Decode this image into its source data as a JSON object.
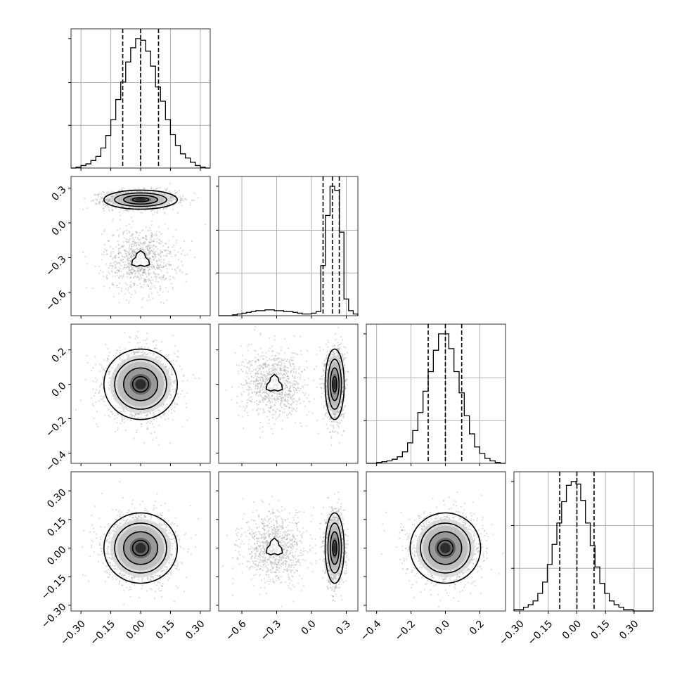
{
  "chart_data": {
    "type": "corner",
    "title": "",
    "grid": true,
    "parameters": [
      {
        "label": "",
        "range": [
          -0.35,
          0.35
        ],
        "ticks": [
          -0.3,
          -0.15,
          0.0,
          0.15,
          0.3
        ],
        "tick_labels": [
          "−0.30",
          "−0.15",
          "0.00",
          "0.15",
          "0.30"
        ],
        "quantiles": [
          -0.09,
          0.0,
          0.09
        ]
      },
      {
        "label": "",
        "range": [
          -0.8,
          0.4
        ],
        "ticks": [
          -0.6,
          -0.3,
          0.0,
          0.3
        ],
        "tick_labels": [
          "−0.6",
          "−0.3",
          "0.0",
          "0.3"
        ],
        "quantiles": [
          0.1,
          0.18,
          0.24
        ]
      },
      {
        "label": "",
        "range": [
          -0.46,
          0.35
        ],
        "ticks": [
          -0.4,
          -0.2,
          0.0,
          0.2
        ],
        "tick_labels": [
          "−0.4",
          "−0.2",
          "0.0",
          "0.2"
        ],
        "quantiles": [
          -0.1,
          0.0,
          0.095
        ]
      },
      {
        "label": "",
        "range": [
          -0.33,
          0.4
        ],
        "ticks": [
          -0.3,
          -0.15,
          0.0,
          0.15,
          0.3
        ],
        "tick_labels": [
          "−0.30",
          "−0.15",
          "0.00",
          "0.15",
          "0.30"
        ],
        "quantiles": [
          -0.09,
          0.0,
          0.09
        ]
      }
    ],
    "histograms": [
      {
        "param": 0,
        "bin_edges": [
          -0.35,
          -0.325,
          -0.3,
          -0.275,
          -0.25,
          -0.225,
          -0.2,
          -0.175,
          -0.15,
          -0.125,
          -0.1,
          -0.075,
          -0.05,
          -0.025,
          0,
          0.025,
          0.05,
          0.075,
          0.1,
          0.125,
          0.15,
          0.175,
          0.2,
          0.225,
          0.25,
          0.275,
          0.3,
          0.325,
          0.35
        ],
        "counts": [
          0,
          1,
          3,
          5,
          9,
          14,
          24,
          39,
          58,
          82,
          103,
          127,
          144,
          155,
          153,
          140,
          122,
          97,
          80,
          58,
          40,
          27,
          17,
          12,
          7,
          3,
          1,
          0
        ]
      },
      {
        "param": 1,
        "bin_edges": [
          -0.8,
          -0.76,
          -0.72,
          -0.68,
          -0.64,
          -0.6,
          -0.56,
          -0.52,
          -0.48,
          -0.44,
          -0.4,
          -0.36,
          -0.32,
          -0.28,
          -0.24,
          -0.2,
          -0.16,
          -0.12,
          -0.08,
          -0.04,
          0,
          0.04,
          0.08,
          0.12,
          0.16,
          0.2,
          0.24,
          0.28,
          0.32,
          0.36,
          0.4
        ],
        "counts": [
          0,
          0,
          0,
          1,
          2,
          3,
          4,
          5,
          6,
          6,
          7,
          7,
          6,
          6,
          5,
          5,
          4,
          3,
          2,
          2,
          3,
          5,
          60,
          120,
          155,
          150,
          100,
          20,
          6,
          2
        ]
      },
      {
        "param": 2,
        "bin_edges": [
          -0.46,
          -0.43,
          -0.4,
          -0.37,
          -0.34,
          -0.31,
          -0.28,
          -0.25,
          -0.22,
          -0.19,
          -0.16,
          -0.13,
          -0.1,
          -0.07,
          -0.04,
          -0.01,
          0.02,
          0.05,
          0.08,
          0.11,
          0.14,
          0.17,
          0.2,
          0.23,
          0.26,
          0.29,
          0.32,
          0.35
        ],
        "counts": [
          0,
          0,
          1,
          2,
          3,
          5,
          8,
          14,
          25,
          40,
          62,
          88,
          112,
          138,
          158,
          158,
          140,
          112,
          86,
          58,
          36,
          20,
          12,
          6,
          3,
          1,
          0
        ]
      },
      {
        "param": 3,
        "bin_edges": [
          -0.33,
          -0.305,
          -0.28,
          -0.255,
          -0.23,
          -0.205,
          -0.18,
          -0.155,
          -0.13,
          -0.105,
          -0.08,
          -0.055,
          -0.03,
          -0.005,
          0.02,
          0.045,
          0.07,
          0.095,
          0.12,
          0.145,
          0.17,
          0.195,
          0.22,
          0.245,
          0.27,
          0.295,
          0.32,
          0.345,
          0.37,
          0.4
        ],
        "counts": [
          1,
          1,
          3,
          5,
          8,
          14,
          23,
          37,
          53,
          70,
          87,
          100,
          103,
          101,
          88,
          70,
          52,
          35,
          22,
          14,
          8,
          5,
          3,
          1,
          1,
          0,
          0,
          0,
          0
        ]
      }
    ],
    "scatter_panels": [
      {
        "x_param": 0,
        "y_param": 1,
        "clusters": [
          {
            "center": [
              0.0,
              0.2
            ],
            "sd": [
              0.09,
              0.04
            ]
          },
          {
            "center": [
              0.0,
              -0.32
            ],
            "sd": [
              0.09,
              0.14
            ]
          }
        ]
      },
      {
        "x_param": 0,
        "y_param": 2,
        "clusters": [
          {
            "center": [
              0.0,
              0.0
            ],
            "sd": [
              0.09,
              0.1
            ]
          }
        ]
      },
      {
        "x_param": 1,
        "y_param": 2,
        "clusters": [
          {
            "center": [
              0.2,
              0.0
            ],
            "sd": [
              0.04,
              0.1
            ]
          },
          {
            "center": [
              -0.32,
              0.0
            ],
            "sd": [
              0.14,
              0.1
            ]
          }
        ]
      },
      {
        "x_param": 0,
        "y_param": 3,
        "clusters": [
          {
            "center": [
              0.0,
              0.0
            ],
            "sd": [
              0.09,
              0.09
            ]
          }
        ]
      },
      {
        "x_param": 1,
        "y_param": 3,
        "clusters": [
          {
            "center": [
              0.2,
              0.0
            ],
            "sd": [
              0.04,
              0.09
            ]
          },
          {
            "center": [
              -0.32,
              0.0
            ],
            "sd": [
              0.14,
              0.09
            ]
          }
        ]
      },
      {
        "x_param": 2,
        "y_param": 3,
        "clusters": [
          {
            "center": [
              0.0,
              0.0
            ],
            "sd": [
              0.1,
              0.09
            ]
          }
        ]
      }
    ]
  }
}
